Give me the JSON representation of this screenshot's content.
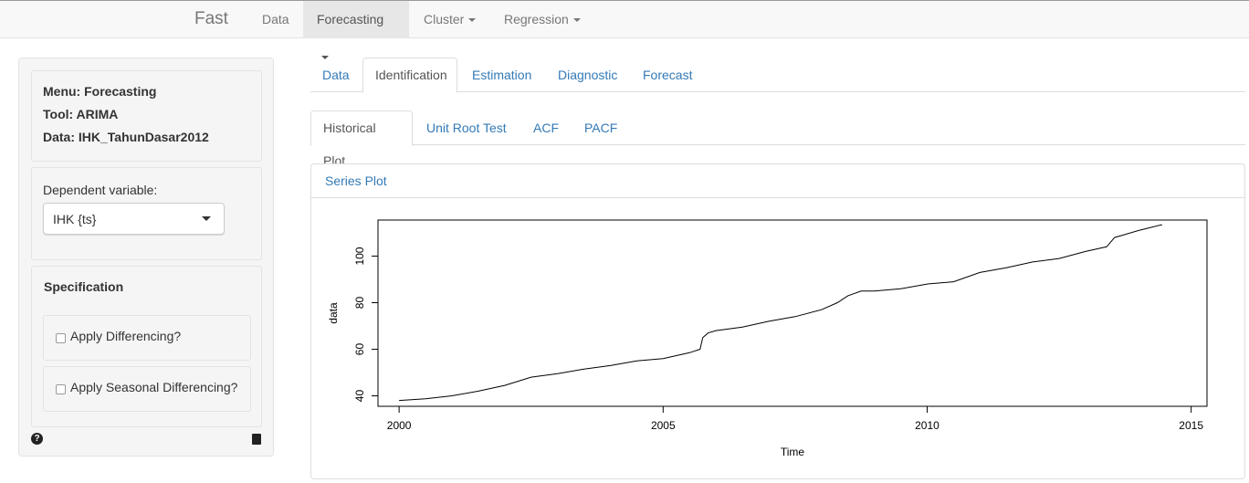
{
  "navbar": {
    "brand": "Fast",
    "items": [
      {
        "label": "Data",
        "dropdown": false,
        "active": false
      },
      {
        "label": "Forecasting",
        "dropdown": true,
        "active": true
      },
      {
        "label": "Cluster",
        "dropdown": true,
        "active": false
      },
      {
        "label": "Regression",
        "dropdown": true,
        "active": false
      }
    ]
  },
  "sidebar": {
    "info": {
      "menu": "Menu: Forecasting",
      "tool": "Tool: ARIMA",
      "data": "Data: IHK_TahunDasar2012"
    },
    "dependent_label": "Dependent variable:",
    "dependent_value": "IHK {ts}",
    "specification_title": "Specification",
    "checkboxes": [
      {
        "label": "Apply Differencing?",
        "checked": false
      },
      {
        "label": "Apply Seasonal Differencing?",
        "checked": false
      }
    ],
    "icons": {
      "help": "question-circle-icon",
      "book": "book-icon"
    }
  },
  "main": {
    "tabs": [
      "Data",
      "Identification",
      "Estimation",
      "Diagnostic",
      "Forecast"
    ],
    "active_tab": "Identification",
    "subtabs": [
      "Historical Plot",
      "Unit Root Test",
      "ACF",
      "PACF"
    ],
    "active_subtab": "Historical Plot",
    "panel_title": "Series Plot"
  },
  "chart_data": {
    "type": "line",
    "title": "",
    "xlabel": "Time",
    "ylabel": "data",
    "xlim": [
      1999.6,
      2015.3
    ],
    "ylim": [
      35.5,
      115.5
    ],
    "xticks": [
      2000,
      2005,
      2010,
      2015
    ],
    "yticks": [
      40,
      60,
      80,
      100
    ],
    "grid": false,
    "series": [
      {
        "x": [
          2000.0,
          2000.5,
          2001.0,
          2001.5,
          2002.0,
          2002.5,
          2003.0,
          2003.5,
          2004.0,
          2004.5,
          2005.0,
          2005.5,
          2005.7,
          2005.75,
          2005.85,
          2006.0,
          2006.5,
          2007.0,
          2007.5,
          2008.0,
          2008.3,
          2008.5,
          2008.75,
          2009.0,
          2009.5,
          2010.0,
          2010.5,
          2011.0,
          2011.5,
          2012.0,
          2012.5,
          2013.0,
          2013.4,
          2013.55,
          2013.7,
          2014.0,
          2014.45
        ],
        "y": [
          38,
          38.7,
          40,
          42,
          44.5,
          48,
          49.5,
          51.5,
          53,
          55,
          56,
          58.5,
          60,
          65,
          67,
          68,
          69.5,
          72,
          74,
          77,
          80,
          83,
          85,
          85,
          86,
          88,
          89,
          93,
          95,
          97.5,
          99,
          102,
          104,
          108,
          109,
          111,
          113.5
        ]
      }
    ]
  }
}
